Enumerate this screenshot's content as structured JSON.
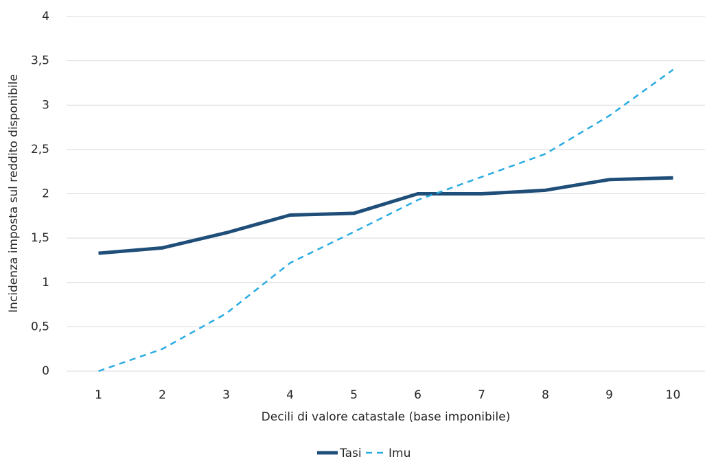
{
  "chart_data": {
    "type": "line",
    "x_label": "Decili di valore catastale (base imponibile)",
    "y_label": "Incidenza imposta sul reddito disponibile",
    "categories": [
      "1",
      "2",
      "3",
      "4",
      "5",
      "6",
      "7",
      "8",
      "9",
      "10"
    ],
    "series": [
      {
        "name": "Tasi",
        "color": "#1f4e79",
        "dash": false,
        "values": [
          1.33,
          1.39,
          1.56,
          1.76,
          1.78,
          2.0,
          2.0,
          2.04,
          2.16,
          2.18
        ]
      },
      {
        "name": "Imu",
        "color": "#29abe2",
        "dash": true,
        "values": [
          0,
          0.25,
          0.65,
          1.22,
          1.57,
          1.93,
          2.19,
          2.45,
          2.88,
          3.4
        ]
      }
    ],
    "ylim": [
      0,
      4
    ],
    "yticks": [
      0,
      {
        "value": 0.5,
        "label": "0,5"
      },
      1,
      {
        "value": 1.5,
        "label": "1,5"
      },
      2,
      {
        "value": 2.5,
        "label": "2,5"
      },
      3,
      {
        "value": 3.5,
        "label": "3,5"
      },
      4
    ],
    "grid": true,
    "legend": "bottom"
  }
}
